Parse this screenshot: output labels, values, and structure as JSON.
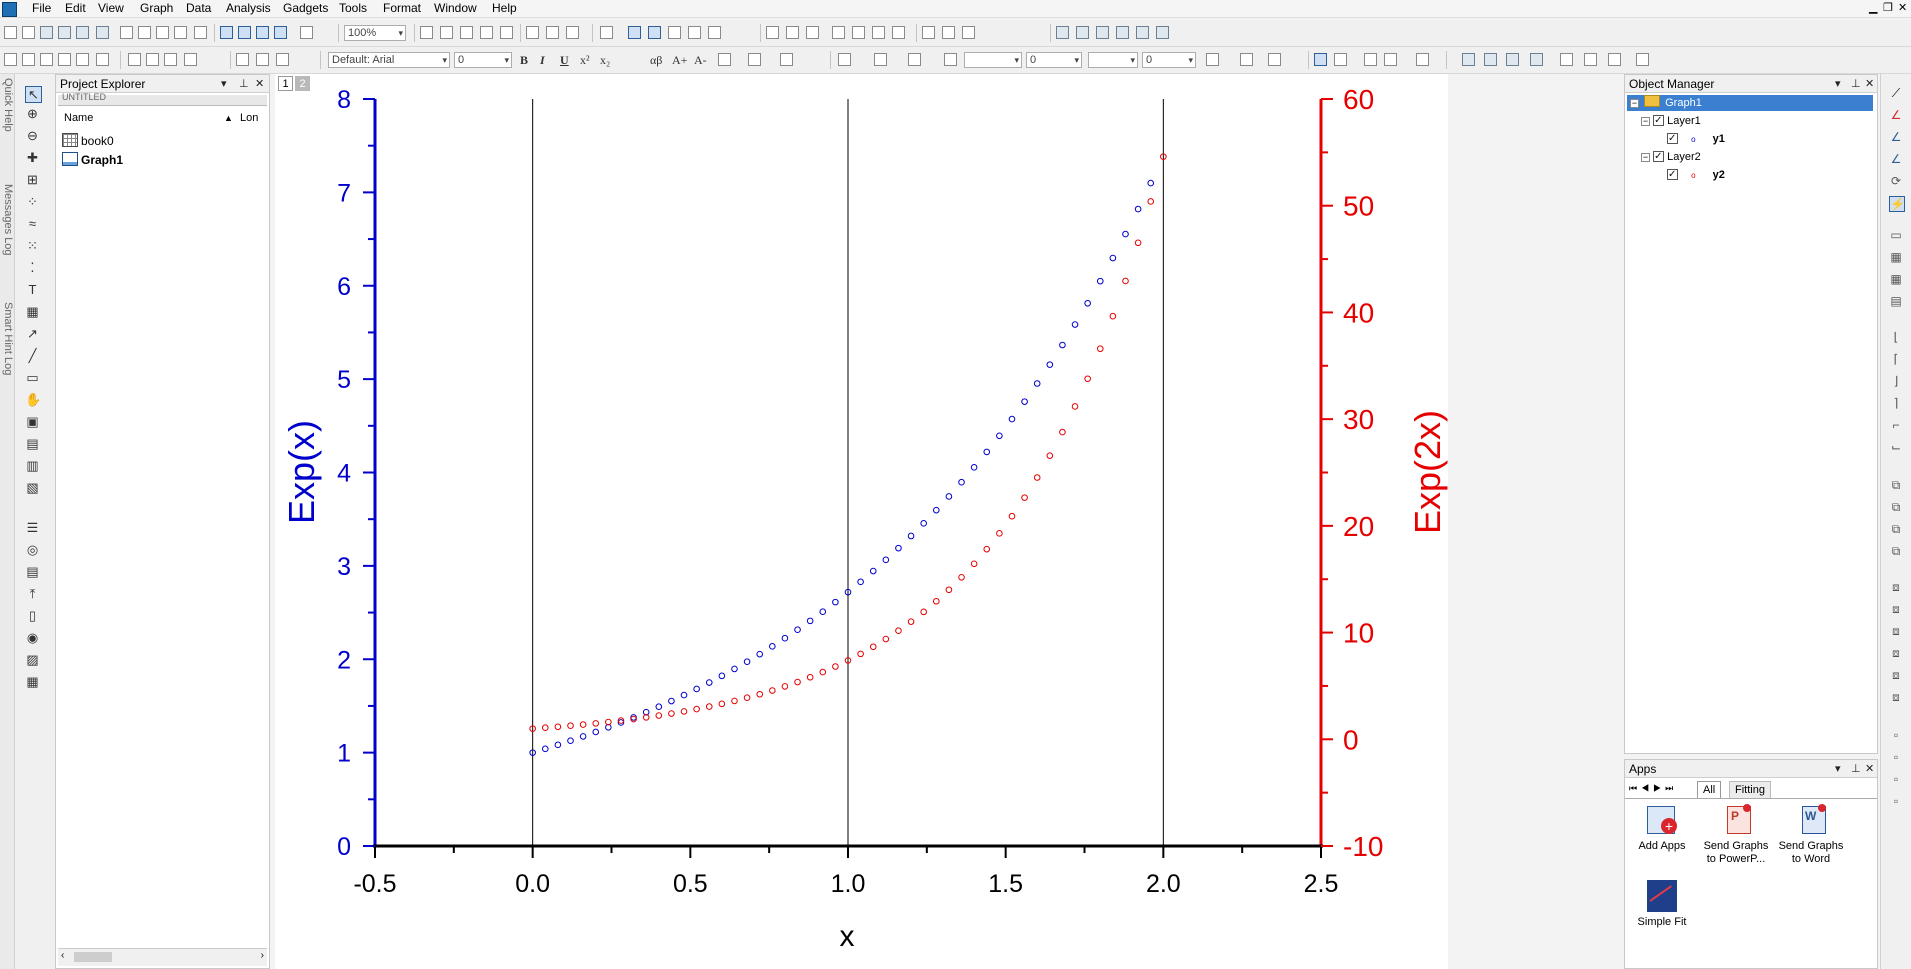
{
  "menu": [
    "File",
    "Edit",
    "View",
    "Graph",
    "Data",
    "Analysis",
    "Gadgets",
    "Tools",
    "Format",
    "Window",
    "Help"
  ],
  "toolbar": {
    "zoom_value": "100%",
    "font_name": "Default: Arial",
    "font_size": "0",
    "line_width": "0",
    "arrow_size": "0",
    "text_bold": "B",
    "text_italic": "I",
    "text_underline": "U",
    "text_super": "x²",
    "text_sub": "x₂",
    "text_greek": "αβ",
    "text_larger": "A+",
    "text_smaller": "A-"
  },
  "side_tabs": [
    "Quick Help",
    "Messages Log",
    "Smart Hint Log"
  ],
  "project_explorer": {
    "title": "Project Explorer",
    "tree_folder": "UNTITLED",
    "col_name": "Name",
    "col_long": "Lon",
    "items": [
      {
        "label": "book0",
        "icon": "workbook-icon",
        "bold": false
      },
      {
        "label": "Graph1",
        "icon": "graph-icon",
        "bold": true
      }
    ]
  },
  "graph_window": {
    "layer_tabs": [
      "1",
      "2"
    ],
    "active_layer": "1"
  },
  "chart_data": {
    "type": "scatter",
    "xlabel": "x",
    "ylabel_left": "Exp(x)",
    "ylabel_right": "Exp(2x)",
    "xlim": [
      -0.5,
      2.5
    ],
    "ylim_left": [
      0,
      8
    ],
    "ylim_right": [
      -10,
      60
    ],
    "x_ticks": [
      "-0.5",
      "0.0",
      "0.5",
      "1.0",
      "1.5",
      "2.0",
      "2.5"
    ],
    "y_left_ticks": [
      "0",
      "1",
      "2",
      "3",
      "4",
      "5",
      "6",
      "7",
      "8"
    ],
    "y_right_ticks": [
      "-10",
      "0",
      "10",
      "20",
      "30",
      "40",
      "50",
      "60"
    ],
    "x_gridlines": [
      0,
      1,
      2
    ],
    "colors": {
      "left": "#0000cc",
      "right": "#e60000"
    },
    "series": [
      {
        "name": "y1",
        "axis": "left",
        "color": "#0000cc",
        "marker": "open-circle",
        "x_start": 0,
        "x_end": 1.96,
        "x_step": 0.04,
        "function": "exp(x)"
      },
      {
        "name": "y2",
        "axis": "right",
        "color": "#e60000",
        "marker": "open-circle",
        "x_start": 0,
        "x_end": 2,
        "x_step": 0.04,
        "function": "exp(2x)"
      }
    ]
  },
  "object_manager": {
    "title": "Object Manager",
    "root": "Graph1",
    "layers": [
      {
        "label": "Layer1",
        "plot": "y1",
        "plot_color": "#0000cc"
      },
      {
        "label": "Layer2",
        "plot": "y2",
        "plot_color": "#e60000"
      }
    ]
  },
  "apps": {
    "title": "Apps",
    "tabs": [
      "All",
      "Fitting"
    ],
    "items": [
      {
        "label": "Add Apps"
      },
      {
        "label": "Send Graphs to PowerP..."
      },
      {
        "label": "Send Graphs to Word"
      },
      {
        "label": "Simple Fit"
      }
    ]
  }
}
